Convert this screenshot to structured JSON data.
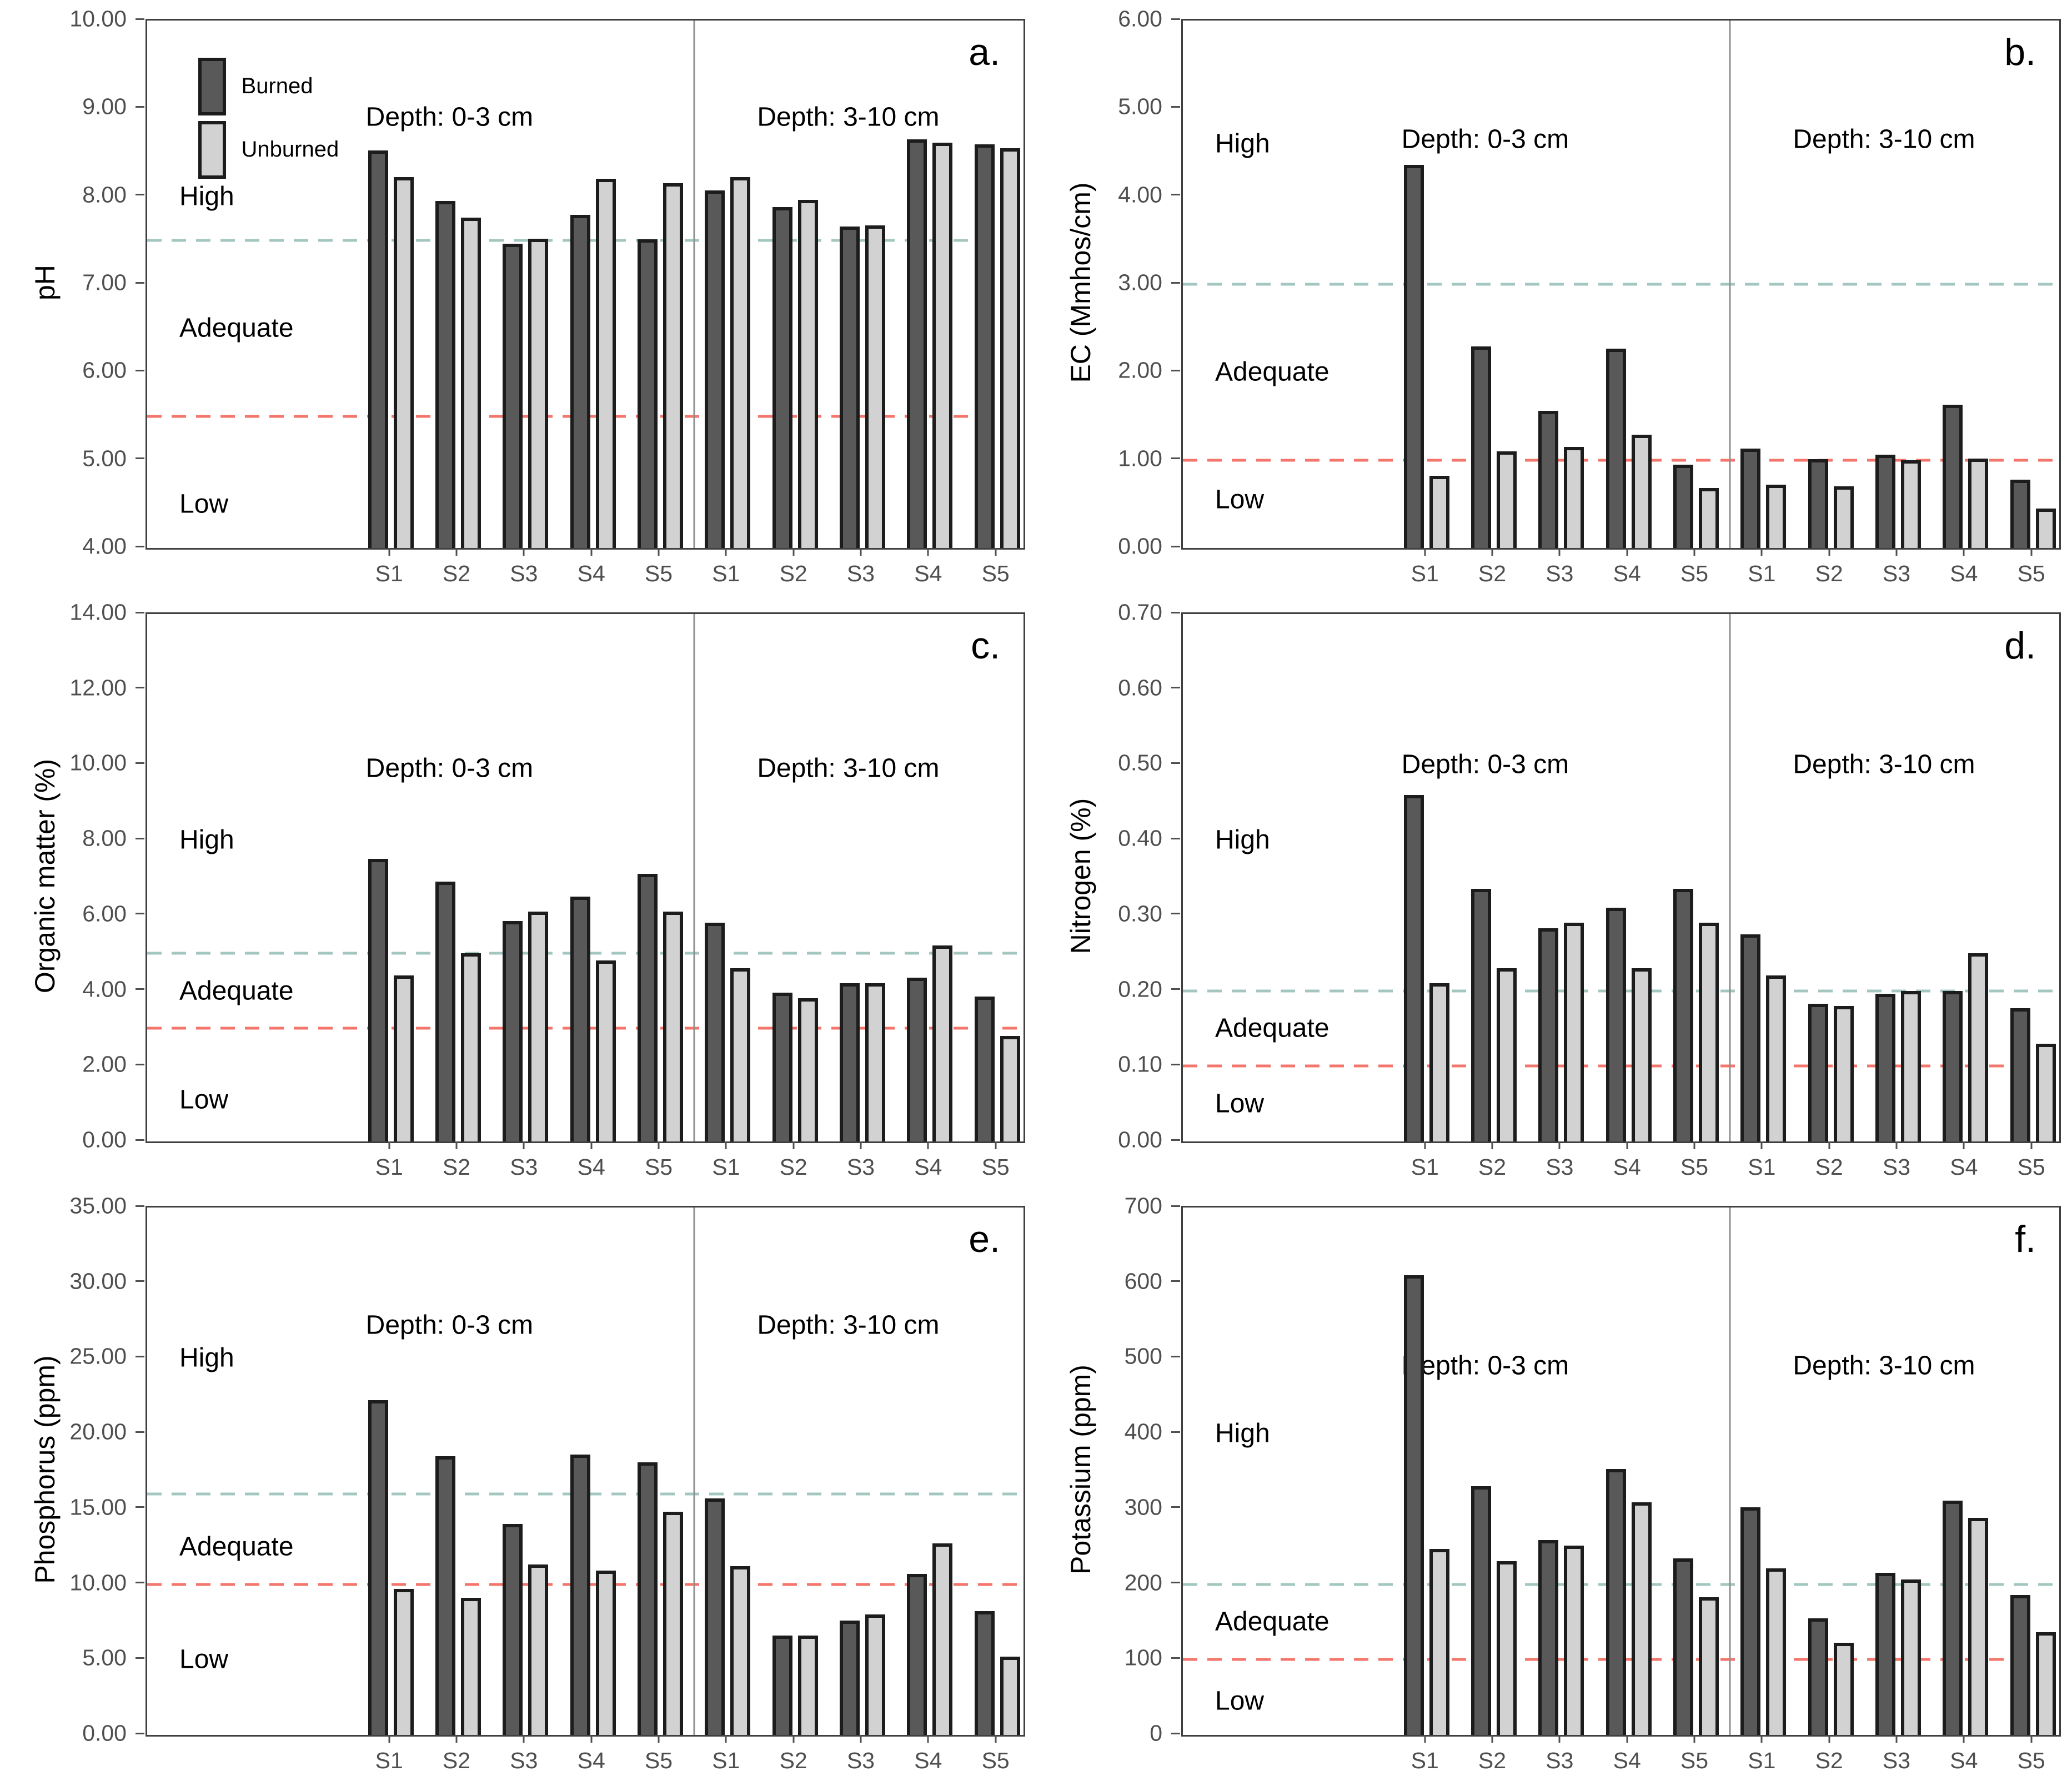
{
  "figure": {
    "legend": {
      "burned_label": "Burned",
      "unburned_label": "Unburned"
    },
    "sites": [
      "S1",
      "S2",
      "S3",
      "S4",
      "S5"
    ],
    "colors": {
      "burned_bar": "#595959",
      "unburned_bar": "#d2d2d2",
      "bar_outline": "#1c1c1c",
      "high_threshold_line": "#a3c7c0",
      "low_threshold_line": "#f4756b",
      "plot_border": "#3f3f3f",
      "section_divider": "#909090"
    }
  },
  "chart_data": [
    {
      "type": "bar",
      "letter": "a.",
      "ylabel": "pH",
      "ymin": 4,
      "ymax": 10,
      "yticks": [
        {
          "v": 10,
          "t": "10.00"
        },
        {
          "v": 9,
          "t": "9.00"
        },
        {
          "v": 8,
          "t": "8.00"
        },
        {
          "v": 7,
          "t": "7.00"
        },
        {
          "v": 6,
          "t": "6.00"
        },
        {
          "v": 5,
          "t": "5.00"
        },
        {
          "v": 4,
          "t": "4.00"
        }
      ],
      "ref_high": 7.5,
      "ref_low": 5.5,
      "zones": [
        {
          "t": "High",
          "v": 8.0
        },
        {
          "t": "Adequate",
          "v": 6.5
        },
        {
          "t": "Low",
          "v": 4.5
        }
      ],
      "header_v": 8.9,
      "legend": true,
      "sections": [
        {
          "label": "Depth: 0-3 cm",
          "burned": [
            8.52,
            7.95,
            7.46,
            7.79,
            7.51
          ],
          "unburned": [
            8.22,
            7.76,
            7.52,
            8.2,
            8.15
          ]
        },
        {
          "label": "Depth: 3-10 cm",
          "burned": [
            8.07,
            7.88,
            7.66,
            8.65,
            8.59
          ],
          "unburned": [
            8.22,
            7.96,
            7.67,
            8.61,
            8.55
          ]
        }
      ]
    },
    {
      "type": "bar",
      "letter": "b.",
      "ylabel": "EC (Mmhos/cm)",
      "ymin": 0,
      "ymax": 6,
      "yticks": [
        {
          "v": 6,
          "t": "6.00"
        },
        {
          "v": 5,
          "t": "5.00"
        },
        {
          "v": 4,
          "t": "4.00"
        },
        {
          "v": 3,
          "t": "3.00"
        },
        {
          "v": 2,
          "t": "2.00"
        },
        {
          "v": 1,
          "t": "1.00"
        },
        {
          "v": 0,
          "t": "0.00"
        }
      ],
      "ref_high": 3.0,
      "ref_low": 1.0,
      "zones": [
        {
          "t": "High",
          "v": 4.6
        },
        {
          "t": "Adequate",
          "v": 2.0
        },
        {
          "t": "Low",
          "v": 0.55
        }
      ],
      "header_v": 4.65,
      "legend": false,
      "sections": [
        {
          "label": "Depth: 0-3 cm",
          "burned": [
            4.36,
            2.29,
            1.56,
            2.27,
            0.95
          ],
          "unburned": [
            0.82,
            1.1,
            1.15,
            1.29,
            0.68
          ]
        },
        {
          "label": "Depth: 3-10 cm",
          "burned": [
            1.13,
            1.01,
            1.06,
            1.63,
            0.78
          ],
          "unburned": [
            0.72,
            0.7,
            1.0,
            1.02,
            0.45
          ]
        }
      ]
    },
    {
      "type": "bar",
      "letter": "c.",
      "ylabel": "Organic matter (%)",
      "ymin": 0,
      "ymax": 14,
      "yticks": [
        {
          "v": 14,
          "t": "14.00"
        },
        {
          "v": 12,
          "t": "12.00"
        },
        {
          "v": 10,
          "t": "10.00"
        },
        {
          "v": 8,
          "t": "8.00"
        },
        {
          "v": 6,
          "t": "6.00"
        },
        {
          "v": 4,
          "t": "4.00"
        },
        {
          "v": 2,
          "t": "2.00"
        },
        {
          "v": 0,
          "t": "0.00"
        }
      ],
      "ref_high": 5.0,
      "ref_low": 3.0,
      "zones": [
        {
          "t": "High",
          "v": 8.0
        },
        {
          "t": "Adequate",
          "v": 4.0
        },
        {
          "t": "Low",
          "v": 1.1
        }
      ],
      "header_v": 9.9,
      "legend": false,
      "sections": [
        {
          "label": "Depth: 0-3 cm",
          "burned": [
            7.5,
            6.9,
            5.85,
            6.5,
            7.1
          ],
          "unburned": [
            4.4,
            5.0,
            6.1,
            4.8,
            6.1
          ]
        },
        {
          "label": "Depth: 3-10 cm",
          "burned": [
            5.8,
            3.95,
            4.2,
            4.35,
            3.85
          ],
          "unburned": [
            4.6,
            3.8,
            4.2,
            5.2,
            2.8
          ]
        }
      ]
    },
    {
      "type": "bar",
      "letter": "d.",
      "ylabel": "Nitrogen (%)",
      "ymin": 0,
      "ymax": 0.7,
      "yticks": [
        {
          "v": 0.7,
          "t": "0.70"
        },
        {
          "v": 0.6,
          "t": "0.60"
        },
        {
          "v": 0.5,
          "t": "0.50"
        },
        {
          "v": 0.4,
          "t": "0.40"
        },
        {
          "v": 0.3,
          "t": "0.30"
        },
        {
          "v": 0.2,
          "t": "0.20"
        },
        {
          "v": 0.1,
          "t": "0.10"
        },
        {
          "v": 0,
          "t": "0.00"
        }
      ],
      "ref_high": 0.2,
      "ref_low": 0.1,
      "zones": [
        {
          "t": "High",
          "v": 0.4
        },
        {
          "t": "Adequate",
          "v": 0.15
        },
        {
          "t": "Low",
          "v": 0.05
        }
      ],
      "header_v": 0.5,
      "legend": false,
      "sections": [
        {
          "label": "Depth: 0-3 cm",
          "burned": [
            0.46,
            0.335,
            0.283,
            0.31,
            0.335
          ],
          "unburned": [
            0.21,
            0.23,
            0.29,
            0.23,
            0.29
          ]
        },
        {
          "label": "Depth: 3-10 cm",
          "burned": [
            0.275,
            0.183,
            0.196,
            0.2,
            0.177
          ],
          "unburned": [
            0.22,
            0.18,
            0.2,
            0.25,
            0.13
          ]
        }
      ]
    },
    {
      "type": "bar",
      "letter": "e.",
      "ylabel": "Phosphorus (ppm)",
      "ymin": 0,
      "ymax": 35,
      "yticks": [
        {
          "v": 35,
          "t": "35.00"
        },
        {
          "v": 30,
          "t": "30.00"
        },
        {
          "v": 25,
          "t": "25.00"
        },
        {
          "v": 20,
          "t": "20.00"
        },
        {
          "v": 15,
          "t": "15.00"
        },
        {
          "v": 10,
          "t": "10.00"
        },
        {
          "v": 5,
          "t": "5.00"
        },
        {
          "v": 0,
          "t": "0.00"
        }
      ],
      "ref_high": 16.0,
      "ref_low": 10.0,
      "zones": [
        {
          "t": "High",
          "v": 25.0
        },
        {
          "t": "Adequate",
          "v": 12.5
        },
        {
          "t": "Low",
          "v": 5.0
        }
      ],
      "header_v": 27.2,
      "legend": false,
      "sections": [
        {
          "label": "Depth: 0-3 cm",
          "burned": [
            22.2,
            18.5,
            14.0,
            18.6,
            18.1
          ],
          "unburned": [
            9.7,
            9.1,
            11.3,
            10.9,
            14.8
          ]
        },
        {
          "label": "Depth: 3-10 cm",
          "burned": [
            15.7,
            6.6,
            7.6,
            10.7,
            8.2
          ],
          "unburned": [
            11.2,
            6.6,
            8.0,
            12.7,
            5.2
          ]
        }
      ]
    },
    {
      "type": "bar",
      "letter": "f.",
      "ylabel": "Potassium (ppm)",
      "ymin": 0,
      "ymax": 700,
      "yticks": [
        {
          "v": 700,
          "t": "700"
        },
        {
          "v": 600,
          "t": "600"
        },
        {
          "v": 500,
          "t": "500"
        },
        {
          "v": 400,
          "t": "400"
        },
        {
          "v": 300,
          "t": "300"
        },
        {
          "v": 200,
          "t": "200"
        },
        {
          "v": 100,
          "t": "100"
        },
        {
          "v": 0,
          "t": "0"
        }
      ],
      "ref_high": 200,
      "ref_low": 100,
      "zones": [
        {
          "t": "High",
          "v": 400
        },
        {
          "t": "Adequate",
          "v": 150
        },
        {
          "t": "Low",
          "v": 45
        }
      ],
      "header_v": 490,
      "legend": false,
      "sections": [
        {
          "label": "Depth: 0-3 cm",
          "burned": [
            610,
            330,
            259,
            353,
            234
          ],
          "unburned": [
            247,
            231,
            251,
            309,
            183
          ]
        },
        {
          "label": "Depth: 3-10 cm",
          "burned": [
            302,
            155,
            215,
            311,
            186
          ],
          "unburned": [
            221,
            122,
            206,
            288,
            136
          ]
        }
      ]
    }
  ]
}
